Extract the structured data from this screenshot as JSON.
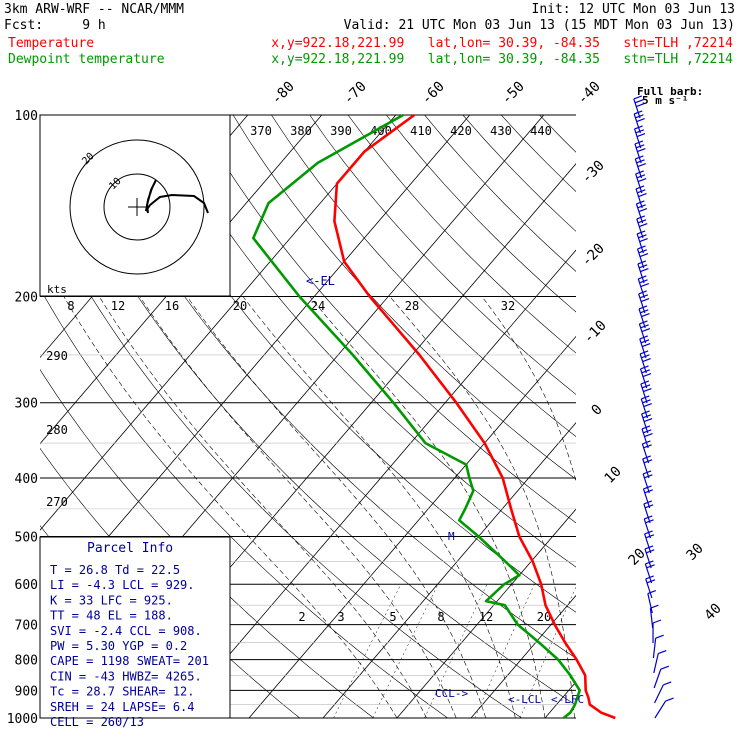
{
  "header": {
    "title_left": "3km ARW-WRF -- NCAR/MMM",
    "init": "Init: 12 UTC Mon 03 Jun 13",
    "fcst": "Fcst:     9 h",
    "valid": "Valid: 21 UTC Mon 03 Jun 13 (15 MDT Mon 03 Jun 13)",
    "temp_label": "Temperature",
    "temp_info": "x,y=922.18,221.99   lat,lon= 30.39, -84.35   stn=TLH ,72214",
    "dew_label": "Dewpoint temperature",
    "dew_info": "x,y=922.18,221.99   lat,lon= 30.39, -84.35   stn=TLH ,72214"
  },
  "colors": {
    "temperature": "#ff0000",
    "dewpoint": "#009900",
    "header_black": "#000000",
    "parcel_text": "#000099",
    "barbs": "#0000cc"
  },
  "barb_label": "Full barb:\n5 m s⁻¹",
  "parcel": {
    "title": "Parcel Info",
    "rows": [
      "T  =    26.8  Td =  22.5",
      "LI =    -4.3  LCL =  929.",
      "K  =      33  LFC =  925.",
      "TT =      48  EL  =  188.",
      "SVI =   -2.4  CCL =  908.",
      "PW =    5.30  YGP =   0.2",
      "CAPE =  1198  SWEAT=  201",
      "CIN =    -43  HWBZ= 4265.",
      "Tc =    28.7  SHEAR=   12.",
      "SREH =    24  LAPSE=   6.4",
      "CELL = 260/13"
    ]
  },
  "annotations": {
    "el": "<-EL",
    "ccl": "CCL->",
    "lcl": "<-LCL",
    "lfc": "<-LFC",
    "m": "M",
    "kts": "kts"
  },
  "hodograph_rings": [
    "20",
    "10"
  ],
  "chart_data": {
    "type": "line",
    "title": "",
    "xlabel": "",
    "ylabel": "",
    "y_scale": "log",
    "ylim": [
      1000,
      100
    ],
    "pressure_ticks": [
      1000,
      900,
      800,
      700,
      600,
      500,
      400,
      300,
      200,
      100
    ],
    "temperature_ticks": [
      "-80",
      "-70",
      "-60",
      "-50",
      "-40",
      "-30",
      "-20",
      "-10",
      "0",
      "10",
      "20",
      "30",
      "40"
    ],
    "theta_labels": [
      "370",
      "380",
      "390",
      "400",
      "410",
      "420",
      "430",
      "440"
    ],
    "theta_left_labels": [
      "290",
      "280",
      "270"
    ],
    "mixing_ratio_top": [
      "8",
      "12",
      "16",
      "20",
      "24",
      "28",
      "32"
    ],
    "mixing_ratio_bottom": [
      "2",
      "3",
      "5",
      "8",
      "12",
      "20"
    ],
    "series": [
      {
        "name": "Temperature",
        "points": [
          [
            1000,
            29.5
          ],
          [
            980,
            27.0
          ],
          [
            950,
            24.5
          ],
          [
            925,
            23.5
          ],
          [
            900,
            22.3
          ],
          [
            850,
            20.5
          ],
          [
            800,
            17.5
          ],
          [
            750,
            14.0
          ],
          [
            700,
            10.5
          ],
          [
            650,
            7.0
          ],
          [
            600,
            4.0
          ],
          [
            550,
            0.2
          ],
          [
            500,
            -4.5
          ],
          [
            450,
            -8.8
          ],
          [
            400,
            -13.5
          ],
          [
            350,
            -20.0
          ],
          [
            300,
            -28.5
          ],
          [
            250,
            -39.0
          ],
          [
            200,
            -52.5
          ],
          [
            175,
            -60.0
          ],
          [
            150,
            -66.0
          ],
          [
            130,
            -70.0
          ],
          [
            115,
            -70.0
          ],
          [
            100,
            -67.5
          ]
        ]
      },
      {
        "name": "Dewpoint temperature",
        "points": [
          [
            1000,
            22.5
          ],
          [
            980,
            22.8
          ],
          [
            950,
            22.5
          ],
          [
            925,
            22.0
          ],
          [
            900,
            21.5
          ],
          [
            850,
            18.5
          ],
          [
            800,
            15.0
          ],
          [
            750,
            10.5
          ],
          [
            700,
            5.5
          ],
          [
            650,
            1.5
          ],
          [
            640,
            -1.5
          ],
          [
            600,
            -1.0
          ],
          [
            580,
            0.0
          ],
          [
            550,
            -3.5
          ],
          [
            500,
            -10.0
          ],
          [
            470,
            -14.5
          ],
          [
            450,
            -15.0
          ],
          [
            420,
            -16.0
          ],
          [
            400,
            -18.0
          ],
          [
            380,
            -20.0
          ],
          [
            350,
            -28.0
          ],
          [
            300,
            -37.0
          ],
          [
            250,
            -48.0
          ],
          [
            200,
            -62.0
          ],
          [
            160,
            -75.0
          ],
          [
            140,
            -77.0
          ],
          [
            120,
            -75.0
          ],
          [
            100,
            -69.0
          ]
        ]
      }
    ]
  }
}
